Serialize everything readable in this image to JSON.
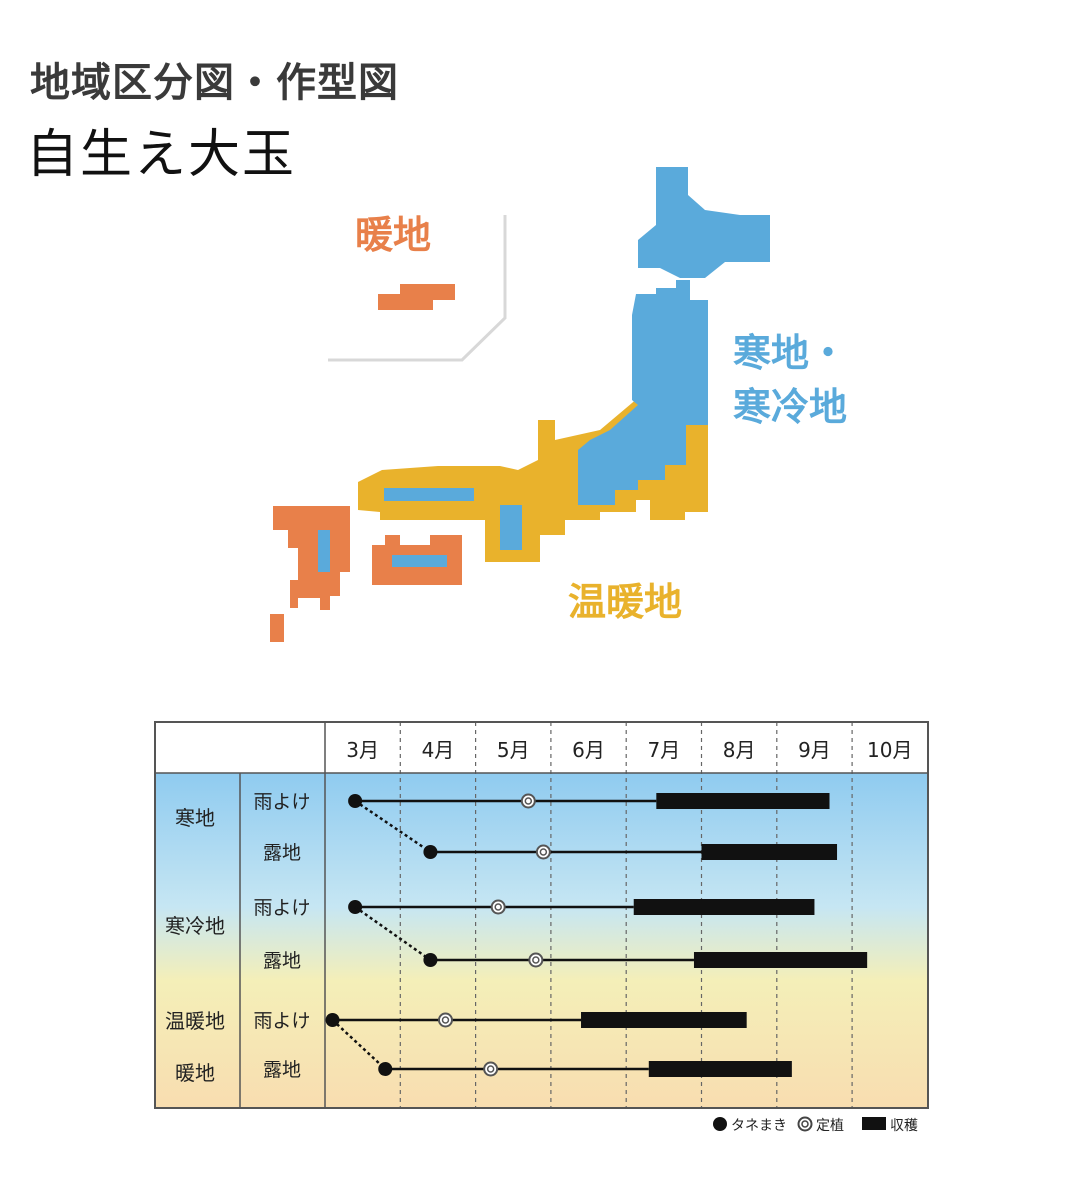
{
  "heading": "地域区分図・作型図",
  "variety": "自生え大玉",
  "map": {
    "labels": {
      "danchi": "暖地",
      "kanchi_line1": "寒地・",
      "kanchi_line2": "寒冷地",
      "ondanchi": "温暖地"
    },
    "colors": {
      "danchi": "#e8804a",
      "kanchi": "#5aaadb",
      "ondanchi": "#e9b22c",
      "frame": "#d8d8d8"
    }
  },
  "schedule": {
    "months": [
      "3月",
      "4月",
      "5月",
      "6月",
      "7月",
      "8月",
      "9月",
      "10月"
    ],
    "region_labels": [
      "寒地",
      "寒冷地",
      "温暖地",
      "暖地"
    ],
    "rows": [
      {
        "method": "雨よけ",
        "sow": 3.4,
        "plant": 5.7,
        "harvest_start": 7.4,
        "harvest_end": 9.7
      },
      {
        "method": "露地",
        "sow": 4.4,
        "plant": 5.9,
        "harvest_start": 8.0,
        "harvest_end": 9.8
      },
      {
        "method": "雨よけ",
        "sow": 3.4,
        "plant": 5.3,
        "harvest_start": 7.1,
        "harvest_end": 9.5
      },
      {
        "method": "露地",
        "sow": 4.4,
        "plant": 5.8,
        "harvest_start": 7.9,
        "harvest_end": 10.2
      },
      {
        "method": "雨よけ",
        "sow": 3.1,
        "plant": 4.6,
        "harvest_start": 6.4,
        "harvest_end": 8.6
      },
      {
        "method": "露地",
        "sow": 3.8,
        "plant": 5.2,
        "harvest_start": 7.3,
        "harvest_end": 9.2
      }
    ],
    "legend": {
      "sow": "タネまき",
      "plant": "定植",
      "harvest": "収穫"
    }
  }
}
